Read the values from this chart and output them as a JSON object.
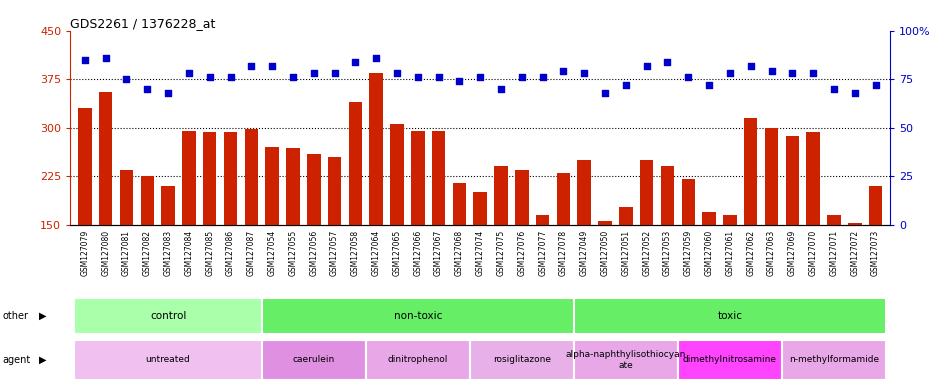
{
  "title": "GDS2261 / 1376228_at",
  "samples": [
    "GSM127079",
    "GSM127080",
    "GSM127081",
    "GSM127082",
    "GSM127083",
    "GSM127084",
    "GSM127085",
    "GSM127086",
    "GSM127087",
    "GSM127054",
    "GSM127055",
    "GSM127056",
    "GSM127057",
    "GSM127058",
    "GSM127064",
    "GSM127065",
    "GSM127066",
    "GSM127067",
    "GSM127068",
    "GSM127074",
    "GSM127075",
    "GSM127076",
    "GSM127077",
    "GSM127078",
    "GSM127049",
    "GSM127050",
    "GSM127051",
    "GSM127052",
    "GSM127053",
    "GSM127059",
    "GSM127060",
    "GSM127061",
    "GSM127062",
    "GSM127063",
    "GSM127069",
    "GSM127070",
    "GSM127071",
    "GSM127072",
    "GSM127073"
  ],
  "bar_values": [
    330,
    355,
    235,
    225,
    210,
    295,
    293,
    293,
    298,
    270,
    268,
    260,
    255,
    340,
    385,
    305,
    295,
    295,
    215,
    200,
    240,
    235,
    165,
    230,
    250,
    155,
    178,
    250,
    240,
    220,
    170,
    165,
    315,
    300,
    287,
    293,
    165,
    152,
    210
  ],
  "dot_values": [
    85,
    86,
    75,
    70,
    68,
    78,
    76,
    76,
    82,
    82,
    76,
    78,
    78,
    84,
    86,
    78,
    76,
    76,
    74,
    76,
    70,
    76,
    76,
    79,
    78,
    68,
    72,
    82,
    84,
    76,
    72,
    78,
    82,
    79,
    78,
    78,
    70,
    68,
    72
  ],
  "ylim_left": [
    150,
    450
  ],
  "ylim_right": [
    0,
    100
  ],
  "yticks_left": [
    150,
    225,
    300,
    375,
    450
  ],
  "yticks_right": [
    0,
    25,
    50,
    75,
    100
  ],
  "bar_color": "#cc2200",
  "dot_color": "#0000cc",
  "bg_color": "#ffffff",
  "xtick_bg": "#d8d8d8",
  "other_groups": [
    {
      "label": "control",
      "start": 0,
      "end": 9,
      "color": "#aaffaa"
    },
    {
      "label": "non-toxic",
      "start": 9,
      "end": 24,
      "color": "#66ee66"
    },
    {
      "label": "toxic",
      "start": 24,
      "end": 39,
      "color": "#66ee66"
    }
  ],
  "agent_groups": [
    {
      "label": "untreated",
      "start": 0,
      "end": 9,
      "color": "#f0c0f0"
    },
    {
      "label": "caerulein",
      "start": 9,
      "end": 14,
      "color": "#e090e0"
    },
    {
      "label": "dinitrophenol",
      "start": 14,
      "end": 19,
      "color": "#e8a8e8"
    },
    {
      "label": "rosiglitazone",
      "start": 19,
      "end": 24,
      "color": "#e8b0e8"
    },
    {
      "label": "alpha-naphthylisothiocyan\nate",
      "start": 24,
      "end": 29,
      "color": "#e8a8e8"
    },
    {
      "label": "dimethylnitrosamine",
      "start": 29,
      "end": 34,
      "color": "#ff44ff"
    },
    {
      "label": "n-methylformamide",
      "start": 34,
      "end": 39,
      "color": "#e8a8e8"
    }
  ],
  "group_separators": [
    8.5,
    23.5
  ],
  "hgrid_values": [
    225,
    300,
    375
  ]
}
